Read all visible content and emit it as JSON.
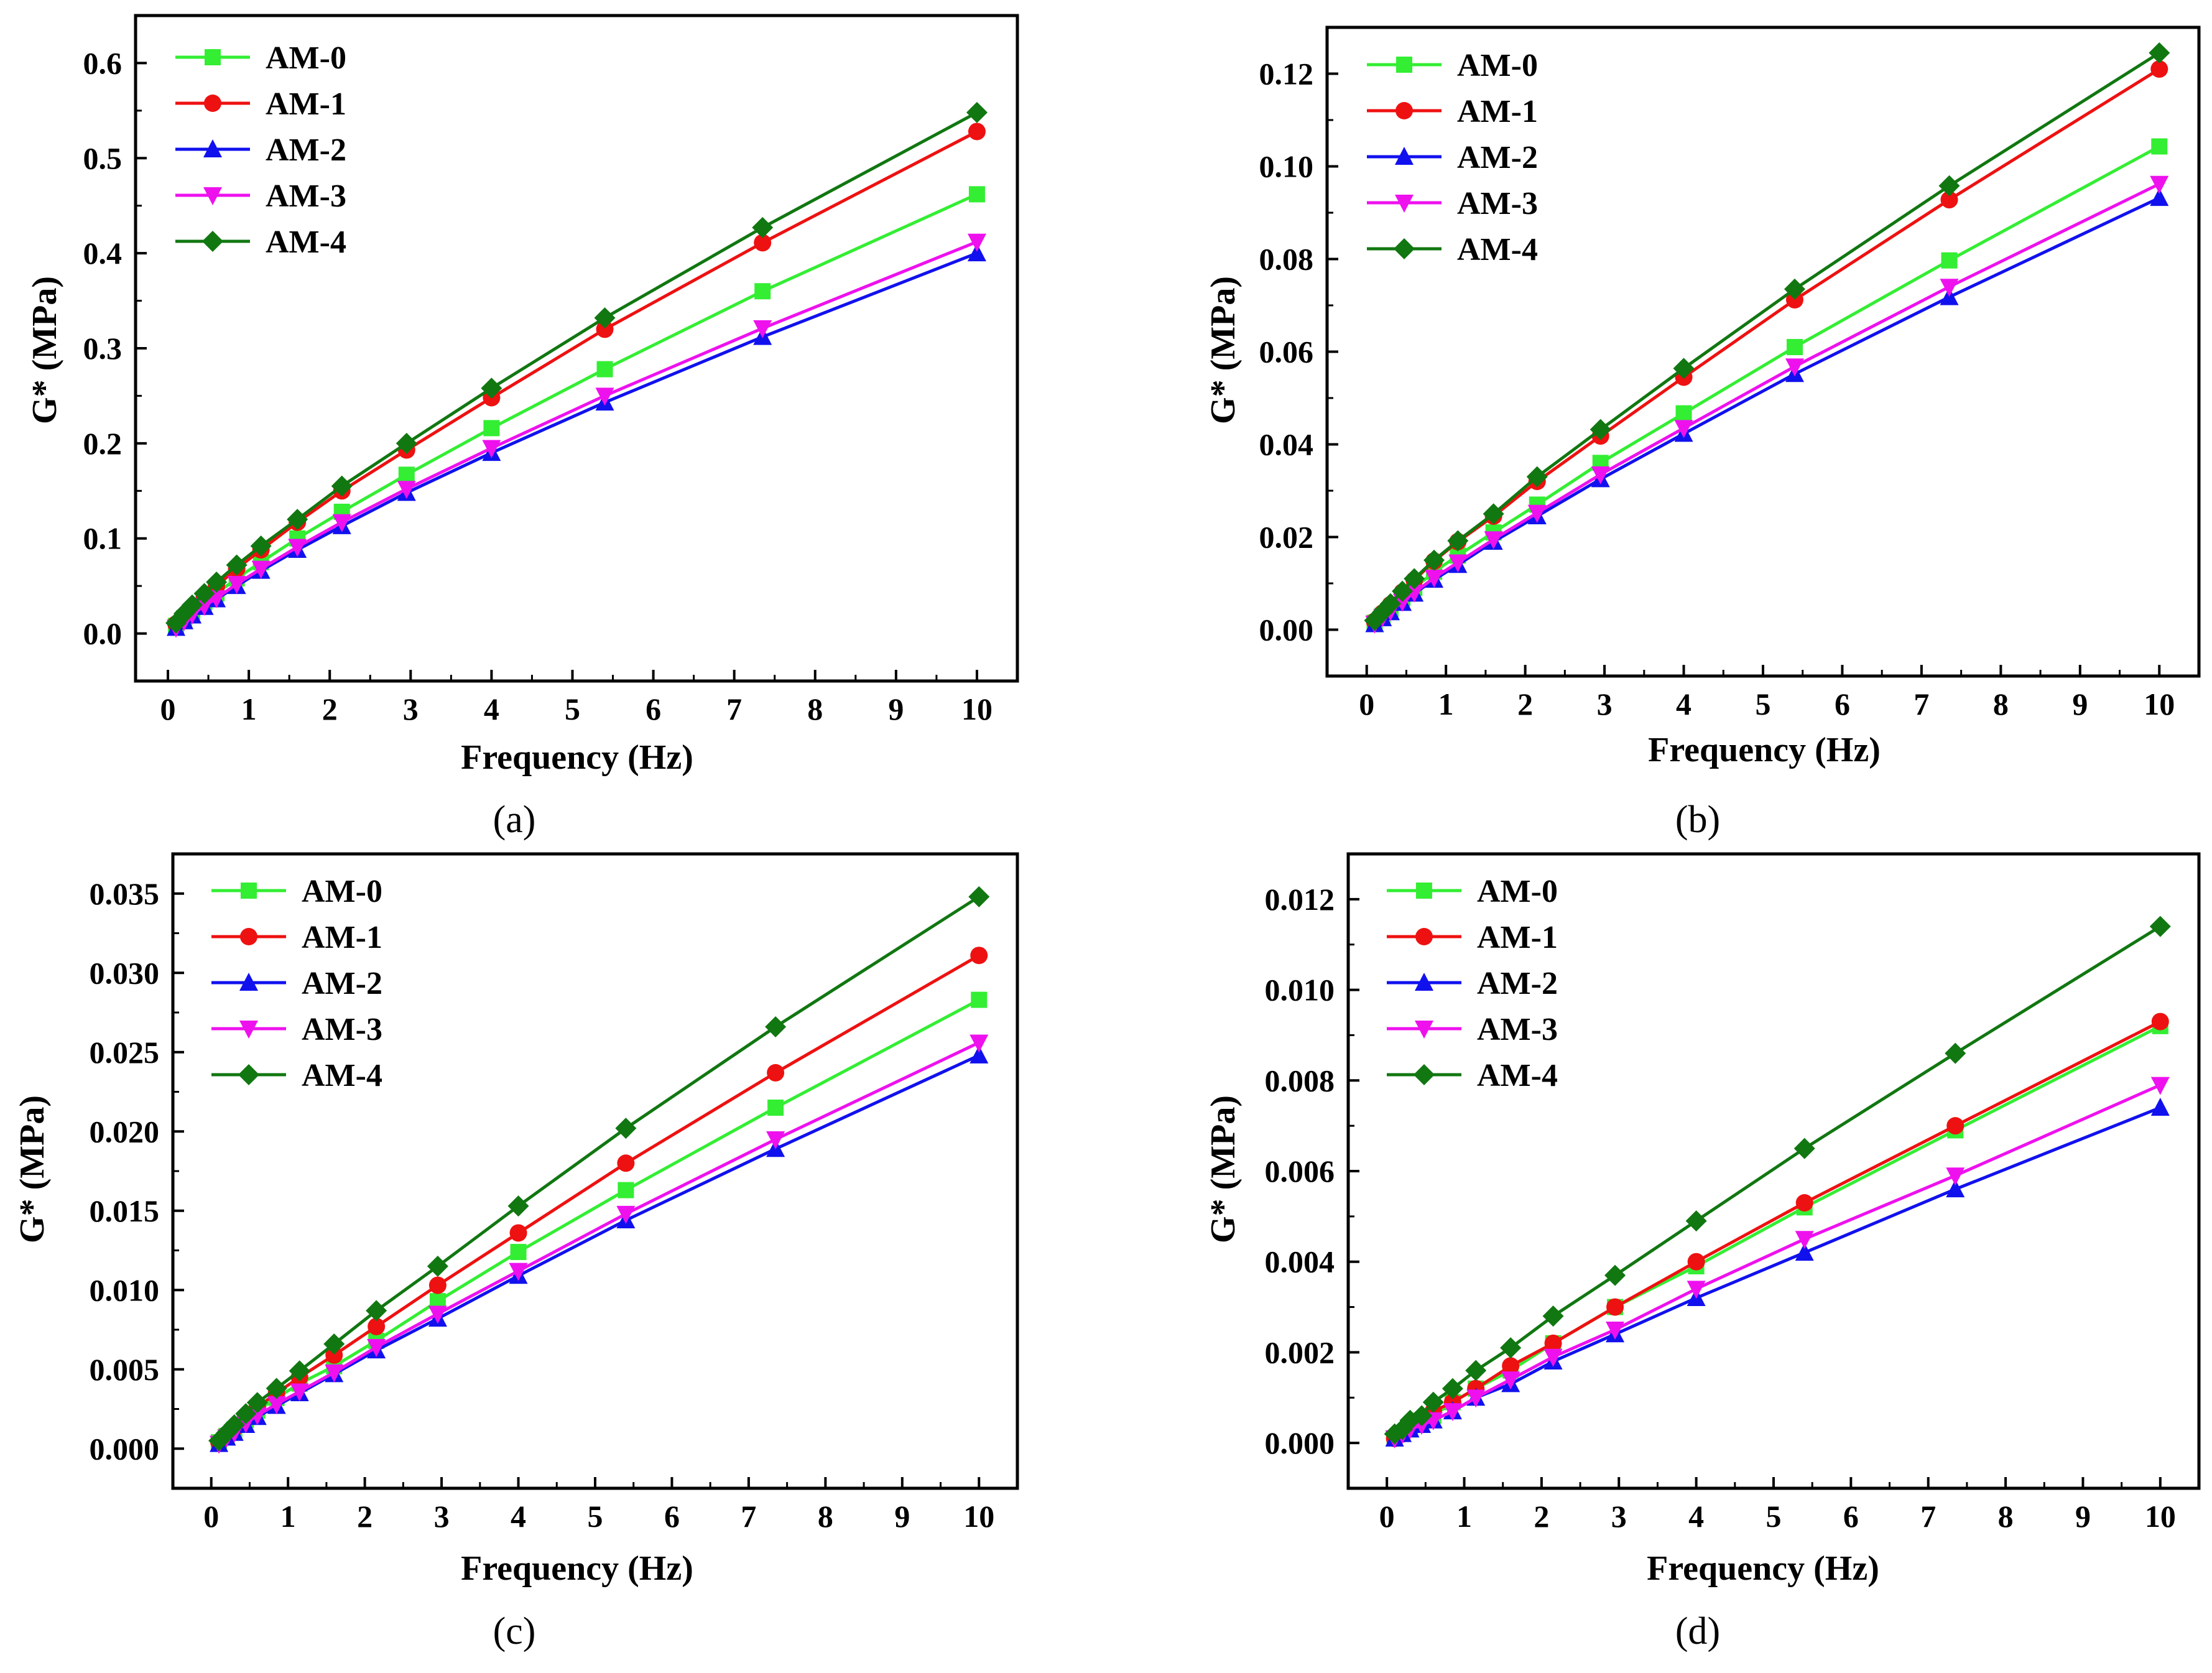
{
  "figure": {
    "captions": [
      "(a)",
      "(b)",
      "(c)",
      "(d)"
    ]
  },
  "colors": {
    "AM-0": "#33ee33",
    "AM-1": "#ee1111",
    "AM-2": "#1111ee",
    "AM-3": "#ee11ee",
    "AM-4": "#117711"
  },
  "chart_data": [
    {
      "panel": "a",
      "type": "line",
      "xlabel": "Frequency (Hz)",
      "ylabel": "G* (MPa)",
      "xlim": [
        -0.4,
        10.5
      ],
      "ylim": [
        -0.05,
        0.65
      ],
      "xticks": [
        0,
        1,
        2,
        3,
        4,
        5,
        6,
        7,
        8,
        9,
        10
      ],
      "yticks": [
        0.0,
        0.1,
        0.2,
        0.3,
        0.4,
        0.5,
        0.6
      ],
      "ytick_labels": [
        "0.0",
        "0.1",
        "0.2",
        "0.3",
        "0.4",
        "0.5",
        "0.6"
      ],
      "legend": "top-left",
      "x": [
        0.1,
        0.2,
        0.3,
        0.45,
        0.6,
        0.85,
        1.15,
        1.6,
        2.15,
        2.95,
        4.0,
        5.4,
        7.35,
        10.0
      ],
      "series": [
        {
          "name": "AM-0",
          "marker": "square",
          "values": [
            0.008,
            0.016,
            0.023,
            0.033,
            0.042,
            0.058,
            0.075,
            0.1,
            0.128,
            0.167,
            0.216,
            0.278,
            0.36,
            0.462
          ]
        },
        {
          "name": "AM-1",
          "marker": "circle",
          "values": [
            0.01,
            0.019,
            0.027,
            0.039,
            0.05,
            0.068,
            0.088,
            0.117,
            0.15,
            0.193,
            0.248,
            0.32,
            0.411,
            0.528
          ]
        },
        {
          "name": "AM-2",
          "marker": "triangle-up",
          "values": [
            0.006,
            0.013,
            0.019,
            0.028,
            0.036,
            0.05,
            0.066,
            0.088,
            0.113,
            0.148,
            0.19,
            0.243,
            0.312,
            0.4
          ]
        },
        {
          "name": "AM-3",
          "marker": "triangle-down",
          "values": [
            0.006,
            0.013,
            0.02,
            0.029,
            0.037,
            0.052,
            0.068,
            0.091,
            0.117,
            0.152,
            0.195,
            0.25,
            0.321,
            0.412
          ]
        },
        {
          "name": "AM-4",
          "marker": "diamond",
          "values": [
            0.011,
            0.021,
            0.03,
            0.042,
            0.054,
            0.072,
            0.092,
            0.12,
            0.155,
            0.2,
            0.258,
            0.332,
            0.427,
            0.548
          ]
        }
      ]
    },
    {
      "panel": "b",
      "type": "line",
      "xlabel": "Frequency (Hz)",
      "ylabel": "G* (MPa)",
      "xlim": [
        -0.5,
        10.5
      ],
      "ylim": [
        -0.01,
        0.13
      ],
      "xticks": [
        0,
        1,
        2,
        3,
        4,
        5,
        6,
        7,
        8,
        9,
        10
      ],
      "yticks": [
        0.0,
        0.02,
        0.04,
        0.06,
        0.08,
        0.1,
        0.12
      ],
      "ytick_labels": [
        "0.00",
        "0.02",
        "0.04",
        "0.06",
        "0.08",
        "0.10",
        "0.12"
      ],
      "legend": "top-left",
      "x": [
        0.1,
        0.2,
        0.3,
        0.45,
        0.6,
        0.85,
        1.15,
        1.6,
        2.15,
        2.95,
        4.0,
        5.4,
        7.35,
        10.0
      ],
      "series": [
        {
          "name": "AM-0",
          "marker": "square",
          "values": [
            0.0015,
            0.003,
            0.0045,
            0.0068,
            0.009,
            0.0125,
            0.016,
            0.021,
            0.027,
            0.036,
            0.0467,
            0.061,
            0.0797,
            0.1043
          ]
        },
        {
          "name": "AM-1",
          "marker": "circle",
          "values": [
            0.0018,
            0.0036,
            0.0054,
            0.0081,
            0.0107,
            0.0148,
            0.019,
            0.0245,
            0.032,
            0.0418,
            0.0545,
            0.0712,
            0.0928,
            0.121
          ]
        },
        {
          "name": "AM-2",
          "marker": "triangle-up",
          "values": [
            0.0012,
            0.0025,
            0.0038,
            0.0058,
            0.0078,
            0.0108,
            0.014,
            0.019,
            0.0245,
            0.0325,
            0.0423,
            0.0552,
            0.0718,
            0.0932
          ]
        },
        {
          "name": "AM-3",
          "marker": "triangle-down",
          "values": [
            0.0013,
            0.0027,
            0.004,
            0.006,
            0.008,
            0.0112,
            0.0145,
            0.0195,
            0.0252,
            0.0335,
            0.0435,
            0.0568,
            0.074,
            0.0962
          ]
        },
        {
          "name": "AM-4",
          "marker": "diamond",
          "values": [
            0.002,
            0.0038,
            0.0056,
            0.0083,
            0.011,
            0.015,
            0.0192,
            0.025,
            0.033,
            0.0432,
            0.0564,
            0.0735,
            0.0958,
            0.1245
          ]
        }
      ]
    },
    {
      "panel": "c",
      "type": "line",
      "xlabel": "Frequency (Hz)",
      "ylabel": "G* (MPa)",
      "xlim": [
        -0.5,
        10.5
      ],
      "ylim": [
        -0.0025,
        0.0375
      ],
      "xticks": [
        0,
        1,
        2,
        3,
        4,
        5,
        6,
        7,
        8,
        9,
        10
      ],
      "yticks": [
        0.0,
        0.005,
        0.01,
        0.015,
        0.02,
        0.025,
        0.03,
        0.035
      ],
      "ytick_labels": [
        "0.000",
        "0.005",
        "0.010",
        "0.015",
        "0.020",
        "0.025",
        "0.030",
        "0.035"
      ],
      "legend": "top-left",
      "x": [
        0.1,
        0.2,
        0.3,
        0.45,
        0.6,
        0.85,
        1.15,
        1.6,
        2.15,
        2.95,
        4.0,
        5.4,
        7.35,
        10.0
      ],
      "series": [
        {
          "name": "AM-0",
          "marker": "square",
          "values": [
            0.0004,
            0.0008,
            0.0012,
            0.0018,
            0.0024,
            0.0032,
            0.0041,
            0.0052,
            0.0068,
            0.0093,
            0.0124,
            0.0163,
            0.0215,
            0.0283
          ]
        },
        {
          "name": "AM-1",
          "marker": "circle",
          "values": [
            0.0004,
            0.0009,
            0.0013,
            0.002,
            0.0026,
            0.0035,
            0.0045,
            0.0059,
            0.0077,
            0.0103,
            0.0136,
            0.018,
            0.0237,
            0.0311
          ]
        },
        {
          "name": "AM-2",
          "marker": "triangle-up",
          "values": [
            0.0003,
            0.0007,
            0.001,
            0.0015,
            0.002,
            0.0027,
            0.0035,
            0.0047,
            0.0062,
            0.0082,
            0.0109,
            0.0144,
            0.0189,
            0.0248
          ]
        },
        {
          "name": "AM-3",
          "marker": "triangle-down",
          "values": [
            0.0003,
            0.0007,
            0.001,
            0.0016,
            0.0021,
            0.0028,
            0.0036,
            0.0048,
            0.0064,
            0.0085,
            0.0112,
            0.0148,
            0.0195,
            0.0256
          ]
        },
        {
          "name": "AM-4",
          "marker": "diamond",
          "values": [
            0.0005,
            0.001,
            0.0015,
            0.0022,
            0.0029,
            0.0038,
            0.0049,
            0.0066,
            0.0087,
            0.0115,
            0.0153,
            0.0202,
            0.0266,
            0.0348
          ]
        }
      ]
    },
    {
      "panel": "d",
      "type": "line",
      "xlabel": "Frequency (Hz)",
      "ylabel": "G* (MPa)",
      "xlim": [
        -0.5,
        10.5
      ],
      "ylim": [
        -0.001,
        0.013
      ],
      "xticks": [
        0,
        1,
        2,
        3,
        4,
        5,
        6,
        7,
        8,
        9,
        10
      ],
      "yticks": [
        0.0,
        0.002,
        0.004,
        0.006,
        0.008,
        0.01,
        0.012
      ],
      "ytick_labels": [
        "0.000",
        "0.002",
        "0.004",
        "0.006",
        "0.008",
        "0.010",
        "0.012"
      ],
      "legend": "top-left",
      "x": [
        0.1,
        0.2,
        0.3,
        0.45,
        0.6,
        0.85,
        1.15,
        1.6,
        2.15,
        2.95,
        4.0,
        5.4,
        7.35,
        10.0
      ],
      "series": [
        {
          "name": "AM-0",
          "marker": "square",
          "values": [
            0.0001,
            0.0002,
            0.0003,
            0.0005,
            0.0006,
            0.0009,
            0.0012,
            0.0016,
            0.0022,
            0.003,
            0.0039,
            0.0052,
            0.0069,
            0.0092
          ]
        },
        {
          "name": "AM-1",
          "marker": "circle",
          "values": [
            0.0001,
            0.0002,
            0.0004,
            0.0005,
            0.0007,
            0.0009,
            0.0012,
            0.0017,
            0.0022,
            0.003,
            0.004,
            0.0053,
            0.007,
            0.0093
          ]
        },
        {
          "name": "AM-2",
          "marker": "triangle-up",
          "values": [
            0.0001,
            0.0002,
            0.0003,
            0.0004,
            0.0005,
            0.0007,
            0.001,
            0.0013,
            0.0018,
            0.0024,
            0.0032,
            0.0042,
            0.0056,
            0.0074
          ]
        },
        {
          "name": "AM-3",
          "marker": "triangle-down",
          "values": [
            0.0001,
            0.0002,
            0.0003,
            0.0004,
            0.0005,
            0.0007,
            0.001,
            0.0014,
            0.0019,
            0.0025,
            0.0034,
            0.0045,
            0.0059,
            0.0079
          ]
        },
        {
          "name": "AM-4",
          "marker": "diamond",
          "values": [
            0.0002,
            0.0003,
            0.0005,
            0.0006,
            0.0009,
            0.0012,
            0.0016,
            0.0021,
            0.0028,
            0.0037,
            0.0049,
            0.0065,
            0.0086,
            0.0114
          ]
        }
      ]
    }
  ]
}
